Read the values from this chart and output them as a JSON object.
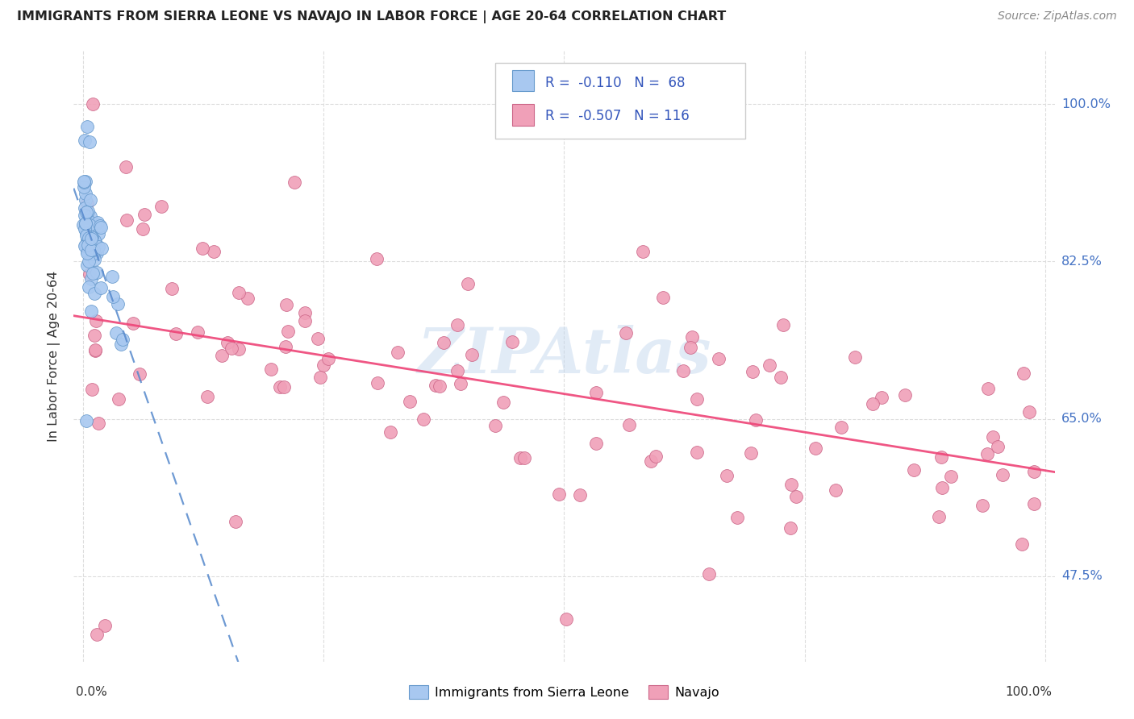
{
  "title": "IMMIGRANTS FROM SIERRA LEONE VS NAVAJO IN LABOR FORCE | AGE 20-64 CORRELATION CHART",
  "source": "Source: ZipAtlas.com",
  "ylabel": "In Labor Force | Age 20-64",
  "ytick_labels": [
    "47.5%",
    "65.0%",
    "82.5%",
    "100.0%"
  ],
  "ytick_vals": [
    0.475,
    0.65,
    0.825,
    1.0
  ],
  "xlim": [
    -0.01,
    1.01
  ],
  "ylim": [
    0.38,
    1.06
  ],
  "legend_r_blue": "-0.110",
  "legend_n_blue": "68",
  "legend_r_pink": "-0.507",
  "legend_n_pink": "116",
  "blue_color": "#a8c8f0",
  "blue_edge_color": "#6699cc",
  "pink_color": "#f0a0b8",
  "pink_edge_color": "#cc6688",
  "blue_line_color": "#5588cc",
  "pink_line_color": "#ee4477",
  "watermark": "ZIPAtlas",
  "title_color": "#222222",
  "source_color": "#888888",
  "ytick_color": "#4472c4",
  "grid_color": "#dddddd",
  "legend_border_color": "#cccccc"
}
